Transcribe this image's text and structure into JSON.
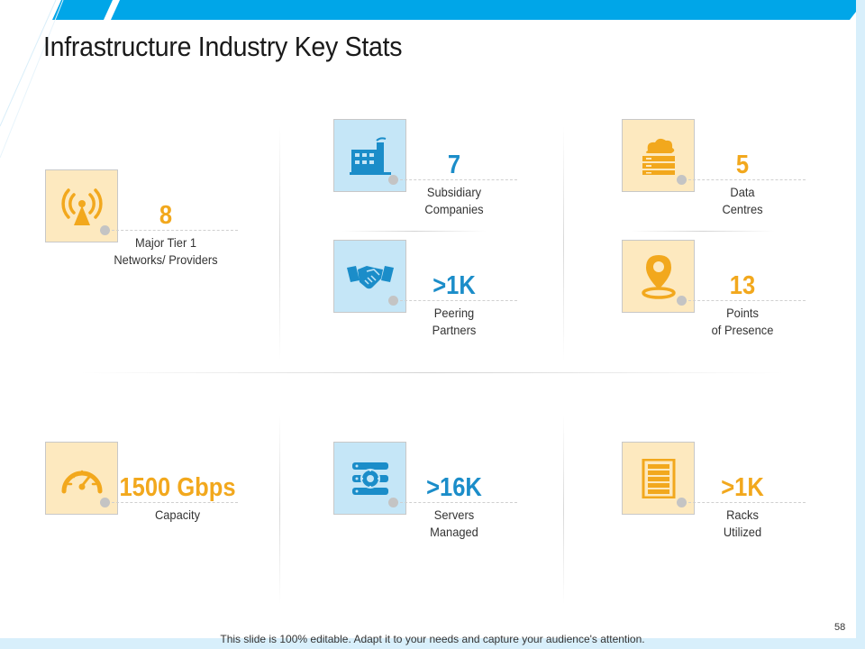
{
  "slide": {
    "title": "Infrastructure Industry Key Stats",
    "footer": "This slide is 100% editable. Adapt it to your needs and capture your audience's attention.",
    "page_number": "58"
  },
  "colors": {
    "accent_blue": "#1b8dc9",
    "accent_yellow": "#f2a81d",
    "box_yellow": "#fde9bf",
    "box_blue": "#c5e6f7",
    "top_bar": "#00a6e8"
  },
  "stats": {
    "tier1": {
      "value": "8",
      "label_line1": "Major Tier 1",
      "label_line2": "Networks/ Providers",
      "icon": "antenna-icon"
    },
    "subsidiary": {
      "value": "7",
      "label_line1": "Subsidiary",
      "label_line2": "Companies",
      "icon": "factory-icon"
    },
    "datacentres": {
      "value": "5",
      "label_line1": "Data",
      "label_line2": "Centres",
      "icon": "data-centre-icon"
    },
    "peering": {
      "value": ">1K",
      "label_line1": "Peering",
      "label_line2": "Partners",
      "icon": "handshake-icon"
    },
    "presence": {
      "value": "13",
      "label_line1": "Points",
      "label_line2": "of Presence",
      "icon": "location-pin-icon"
    },
    "capacity": {
      "value": "1500 Gbps",
      "label_line1": "Capacity",
      "icon": "speedometer-icon"
    },
    "servers": {
      "value": ">16K",
      "label_line1": "Servers",
      "label_line2": "Managed",
      "icon": "server-gear-icon"
    },
    "racks": {
      "value": ">1K",
      "label_line1": "Racks",
      "label_line2": "Utilized",
      "icon": "rack-icon"
    }
  }
}
